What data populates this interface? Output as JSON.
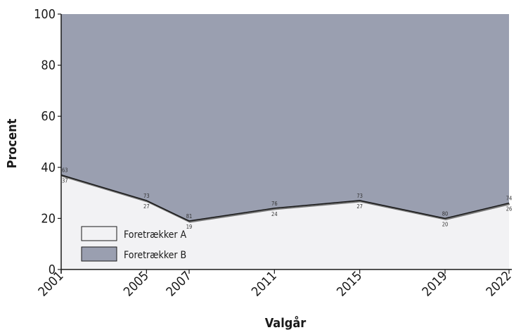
{
  "chart_data": {
    "type": "area",
    "stacked": true,
    "x": [
      2001,
      2005,
      2007,
      2011,
      2015,
      2019,
      2022
    ],
    "series": [
      {
        "name": "Foretrækker A",
        "values": [
          37,
          27,
          19,
          24,
          27,
          20,
          26
        ],
        "color": "#f2f2f4"
      },
      {
        "name": "Foretrækker B",
        "values": [
          63,
          73,
          81,
          76,
          73,
          80,
          74
        ],
        "color": "#9a9fb0"
      }
    ],
    "xlabel": "Valgår",
    "ylabel": "Procent",
    "ylim": [
      0,
      100
    ],
    "yticks": [
      0,
      20,
      40,
      60,
      80,
      100
    ],
    "xticks": [
      "2001",
      "2005",
      "2007",
      "2011",
      "2015",
      "2019",
      "2022"
    ],
    "grid": false,
    "legend_position": "bottom-left",
    "boundary_color": "#1a1a1a"
  }
}
